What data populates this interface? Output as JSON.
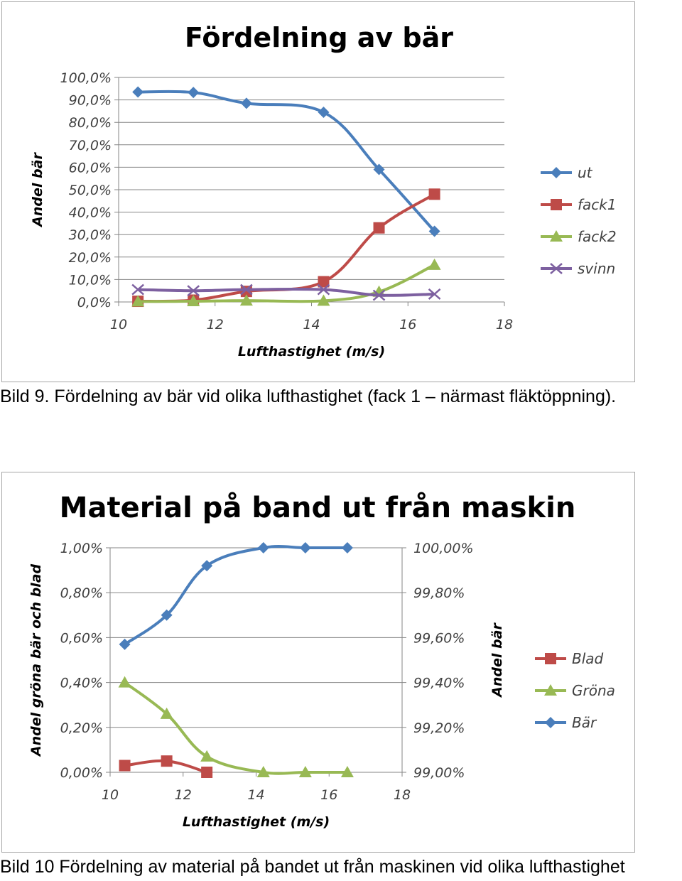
{
  "captions": {
    "first": "Bild 9. Fördelning av bär vid olika lufthastighet (fack 1 – närmast fläktöppning).",
    "second": "Bild 10 Fördelning av material på bandet ut från maskinen vid olika lufthastighet"
  },
  "chart_data": [
    {
      "type": "line",
      "title": "Fördelning av bär",
      "xlabel": "Lufthastighet (m/s)",
      "ylabel": "Andel bär",
      "xlim": [
        10,
        18
      ],
      "ylim": [
        0,
        100
      ],
      "x_ticks": [
        "10",
        "12",
        "14",
        "16",
        "18"
      ],
      "y_ticks": [
        "0,0%",
        "10,0%",
        "20,0%",
        "30,0%",
        "40,0%",
        "50,0%",
        "60,0%",
        "70,0%",
        "80,0%",
        "90,0%",
        "100,0%"
      ],
      "grid": true,
      "legend_position": "right",
      "x": [
        10.4,
        11.55,
        12.65,
        14.25,
        15.4,
        16.55
      ],
      "series": [
        {
          "name": "ut",
          "values": [
            93.5,
            93.3,
            88.5,
            84.5,
            59.0,
            31.5
          ],
          "color": "#4a7ebb",
          "marker": "diamond"
        },
        {
          "name": "fack1",
          "values": [
            0.3,
            0.8,
            4.7,
            9.0,
            33.0,
            48.0
          ],
          "color": "#be4b48",
          "marker": "square"
        },
        {
          "name": "fack2",
          "values": [
            0.2,
            0.3,
            0.6,
            0.5,
            4.5,
            16.5
          ],
          "color": "#98b954",
          "marker": "triangle"
        },
        {
          "name": "svinn",
          "values": [
            5.5,
            5.0,
            5.5,
            5.5,
            3.0,
            3.5
          ],
          "color": "#7d60a0",
          "marker": "x"
        }
      ]
    },
    {
      "type": "line",
      "title": "Material på band ut från maskin",
      "xlabel": "Lufthastighet (m/s)",
      "ylabel": "Andel gröna bär och blad",
      "ylabel_right": "Andel bär",
      "xlim": [
        10,
        18
      ],
      "ylim": [
        0,
        1.0
      ],
      "ylim_right": [
        99.0,
        100.0
      ],
      "x_ticks": [
        "10",
        "12",
        "14",
        "16",
        "18"
      ],
      "y_ticks": [
        "0,00%",
        "0,20%",
        "0,40%",
        "0,60%",
        "0,80%",
        "1,00%"
      ],
      "y_ticks_right": [
        "99,00%",
        "99,20%",
        "99,40%",
        "99,60%",
        "99,80%",
        "100,00%"
      ],
      "grid": true,
      "legend_position": "right",
      "series": [
        {
          "name": "Blad",
          "axis": "left",
          "x": [
            10.4,
            11.55,
            12.65
          ],
          "values": [
            0.03,
            0.05,
            0.0
          ],
          "color": "#be4b48",
          "marker": "square"
        },
        {
          "name": "Gröna",
          "axis": "left",
          "x": [
            10.4,
            11.55,
            12.65,
            14.2,
            15.35,
            16.5
          ],
          "values": [
            0.4,
            0.26,
            0.07,
            0.0,
            0.0,
            0.0
          ],
          "color": "#98b954",
          "marker": "triangle"
        },
        {
          "name": "Bär",
          "axis": "right",
          "x": [
            10.4,
            11.55,
            12.65,
            14.2,
            15.35,
            16.5
          ],
          "values": [
            99.57,
            99.7,
            99.92,
            100.0,
            100.0,
            100.0
          ],
          "color": "#4a7ebb",
          "marker": "diamond"
        }
      ]
    }
  ]
}
